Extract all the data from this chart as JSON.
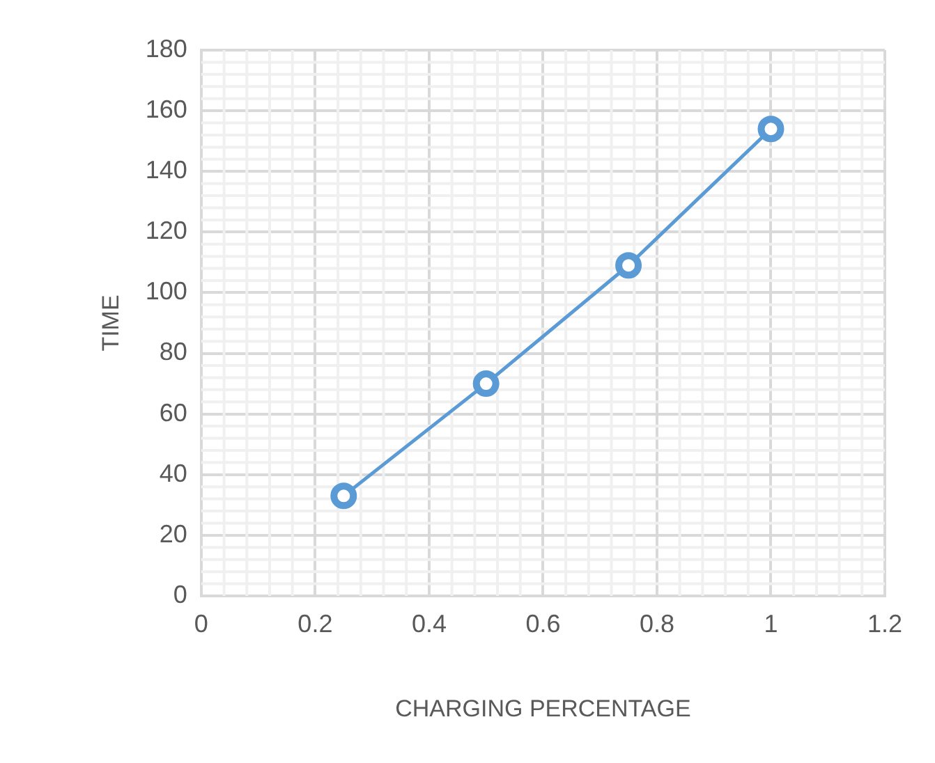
{
  "chart_data": {
    "type": "line",
    "xlabel": "CHARGING PERCENTAGE",
    "ylabel": "TIME",
    "x": [
      0.25,
      0.5,
      0.75,
      1
    ],
    "series": [
      {
        "color": "#5b9bd5",
        "values": [
          33,
          70,
          109,
          154
        ]
      }
    ],
    "xlim": [
      0,
      1.2
    ],
    "xticks": [
      0,
      0.2,
      0.4,
      0.6,
      0.8,
      1,
      1.2
    ],
    "ylim": [
      0,
      180
    ],
    "yticks": [
      0,
      20,
      40,
      60,
      80,
      100,
      120,
      140,
      160,
      180
    ],
    "grid": true,
    "marker": "circle",
    "line_style": "solid",
    "legend": false
  }
}
